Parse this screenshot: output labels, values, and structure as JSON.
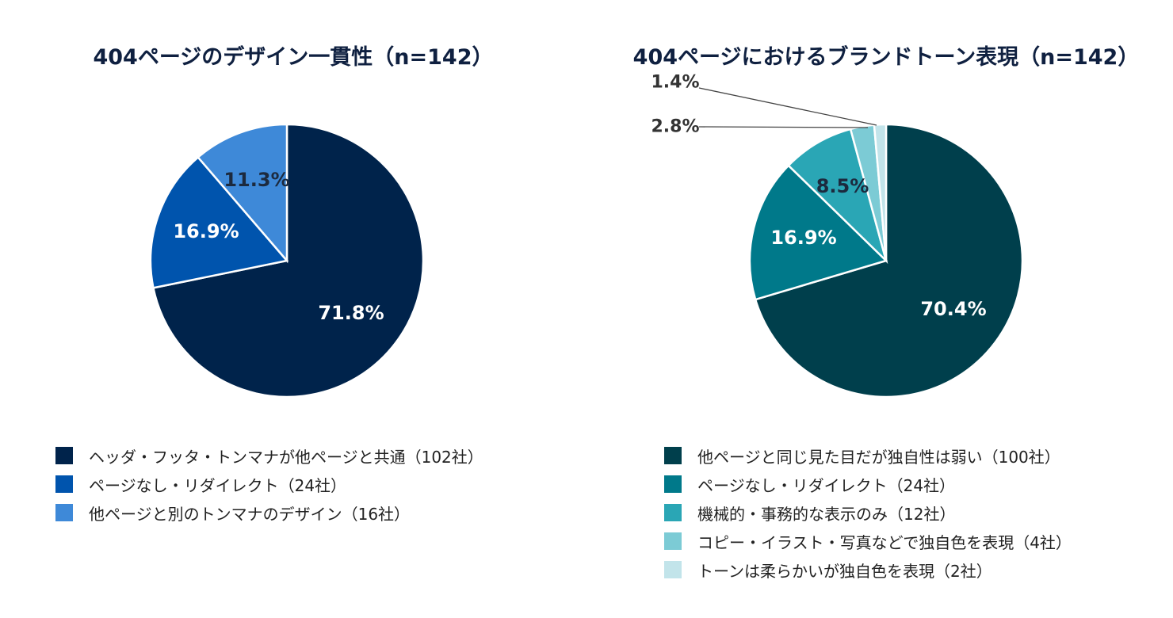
{
  "chart_data": [
    {
      "type": "pie",
      "title": "404ページのデザイン一貫性（n=142）",
      "slices": [
        {
          "label": "ヘッダ・フッタ・トンマナが他ページと共通（102社）",
          "value": 71.8,
          "value_label": "71.8%",
          "color": "#00234b",
          "label_color": "#ffffff"
        },
        {
          "label": "ページなし・リダイレクト（24社）",
          "value": 16.9,
          "value_label": "16.9%",
          "color": "#0054ad",
          "label_color": "#ffffff"
        },
        {
          "label": "他ページと別のトンマナのデザイン（16社）",
          "value": 11.3,
          "value_label": "11.3%",
          "color": "#3e89d8",
          "label_color": "#1c2a3e"
        }
      ],
      "legend": "bottom"
    },
    {
      "type": "pie",
      "title": "404ページにおけるブランドトーン表現（n=142）",
      "slices": [
        {
          "label": "他ページと同じ見た目だが独自性は弱い（100社）",
          "value": 70.4,
          "value_label": "70.4%",
          "color": "#003f4c",
          "label_color": "#ffffff"
        },
        {
          "label": "ページなし・リダイレクト（24社）",
          "value": 16.9,
          "value_label": "16.9%",
          "color": "#00798a",
          "label_color": "#ffffff"
        },
        {
          "label": "機械的・事務的な表示のみ（12社）",
          "value": 8.5,
          "value_label": "8.5%",
          "color": "#2aa6b5",
          "label_color": "#1c2a3e"
        },
        {
          "label": "コピー・イラスト・写真などで独自色を表現（4社）",
          "value": 2.8,
          "value_label": "2.8%",
          "color": "#7ccbd5",
          "label_color": "#333333"
        },
        {
          "label": "トーンは柔らかいが独自色を表現（2社）",
          "value": 1.4,
          "value_label": "1.4%",
          "color": "#c2e4ea",
          "label_color": "#333333"
        }
      ],
      "legend": "bottom"
    }
  ]
}
